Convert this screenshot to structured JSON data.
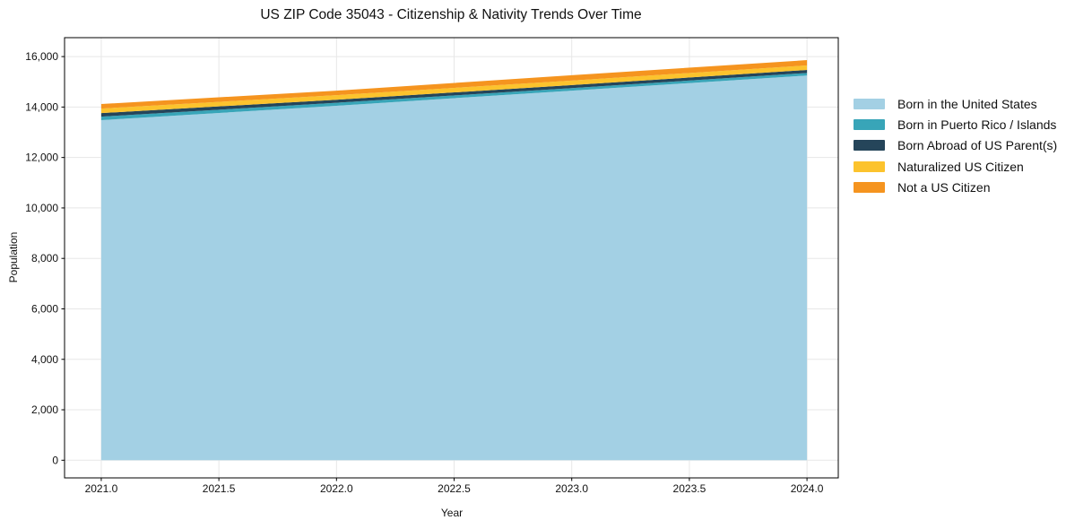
{
  "chart_data": {
    "type": "area",
    "stacked": true,
    "title": "US ZIP Code 35043 - Citizenship & Nativity Trends Over Time",
    "xlabel": "Year",
    "ylabel": "Population",
    "x": [
      2021,
      2022,
      2023,
      2024
    ],
    "series": [
      {
        "name": "Born in the United States",
        "color": "#a3d0e4",
        "values": [
          13480,
          14050,
          14650,
          15250
        ]
      },
      {
        "name": "Born in Puerto Rico / Islands",
        "color": "#38a5b8",
        "values": [
          140,
          120,
          100,
          100
        ]
      },
      {
        "name": "Born Abroad of US Parent(s)",
        "color": "#25455a",
        "values": [
          140,
          120,
          120,
          120
        ]
      },
      {
        "name": "Naturalized US Citizen",
        "color": "#fcc32d",
        "values": [
          180,
          180,
          180,
          180
        ]
      },
      {
        "name": "Not a US Citizen",
        "color": "#f5941f",
        "values": [
          180,
          180,
          210,
          210
        ]
      }
    ],
    "stacked_totals": [
      14120,
      14650,
      15260,
      15860
    ],
    "xlim": [
      2020.844,
      2024.133
    ],
    "ylim": [
      -700,
      16750
    ],
    "x_ticks": [
      2021.0,
      2021.5,
      2022.0,
      2022.5,
      2023.0,
      2023.5,
      2024.0
    ],
    "x_tick_labels": [
      "2021.0",
      "2021.5",
      "2022.0",
      "2022.5",
      "2023.0",
      "2023.5",
      "2024.0"
    ],
    "y_ticks": [
      0,
      2000,
      4000,
      6000,
      8000,
      10000,
      12000,
      14000,
      16000
    ],
    "y_tick_labels": [
      "0",
      "2,000",
      "4,000",
      "6,000",
      "8,000",
      "10,000",
      "12,000",
      "14,000",
      "16,000"
    ],
    "grid": true,
    "legend_position": "outside-right"
  },
  "colors": {
    "background": "#ffffff",
    "grid": "#e7e7e7",
    "spine": "#000000",
    "text": "#111111"
  }
}
